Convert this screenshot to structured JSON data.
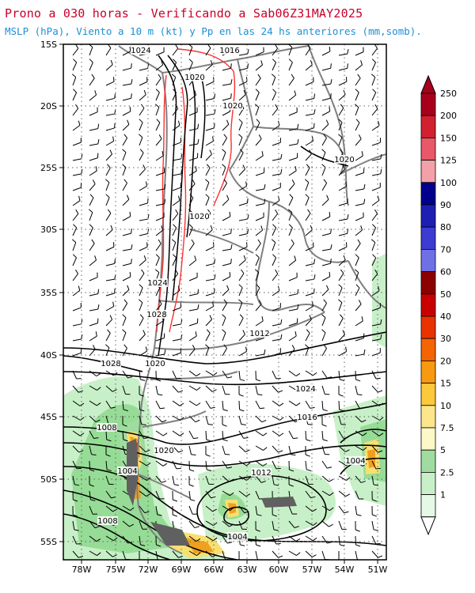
{
  "header": {
    "title": "Prono a 030 horas - Verificando a Sab06Z31MAY2025",
    "subtitle": "MSLP (hPa), Viento a 10 m (kt) y Pp en las 24 hs anteriores (mm,somb)."
  },
  "map": {
    "lat_labels": [
      "15S",
      "20S",
      "25S",
      "30S",
      "35S",
      "40S",
      "45S",
      "50S",
      "55S"
    ],
    "lon_labels": [
      "78W",
      "75W",
      "72W",
      "69W",
      "66W",
      "63W",
      "60W",
      "57W",
      "54W",
      "51W"
    ],
    "isobar_labels": [
      "1024",
      "1016",
      "1020",
      "1020",
      "1020",
      "1020",
      "1024",
      "1028",
      "1028",
      "1020",
      "1012",
      "1024",
      "1008",
      "1016",
      "1020",
      "1004",
      "1004",
      "1012",
      "1008",
      "1004"
    ],
    "colors": {
      "isobar": "#000000",
      "border": "#808080",
      "topo_line": "#ff3030",
      "precip_light": "#c8f0c8",
      "precip_mid": "#96dc96",
      "precip_yellow": "#f8e070",
      "precip_orange": "#f0a020",
      "precip_red": "#d83010"
    }
  },
  "legend": {
    "labels": [
      "250",
      "200",
      "150",
      "125",
      "100",
      "90",
      "80",
      "70",
      "60",
      "50",
      "40",
      "30",
      "20",
      "15",
      "10",
      "7.5",
      "5",
      "2.5",
      "1"
    ],
    "colors": [
      "#a8001c",
      "#d22030",
      "#e85868",
      "#f4a0a8",
      "#00008c",
      "#1e1eb4",
      "#3c3cd2",
      "#7070e6",
      "#8c0000",
      "#c80000",
      "#e83200",
      "#f46400",
      "#f89a10",
      "#fcc83c",
      "#fce68c",
      "#fcf8c8",
      "#a0dca0",
      "#c8f0c8",
      "#e6f8e6"
    ]
  }
}
